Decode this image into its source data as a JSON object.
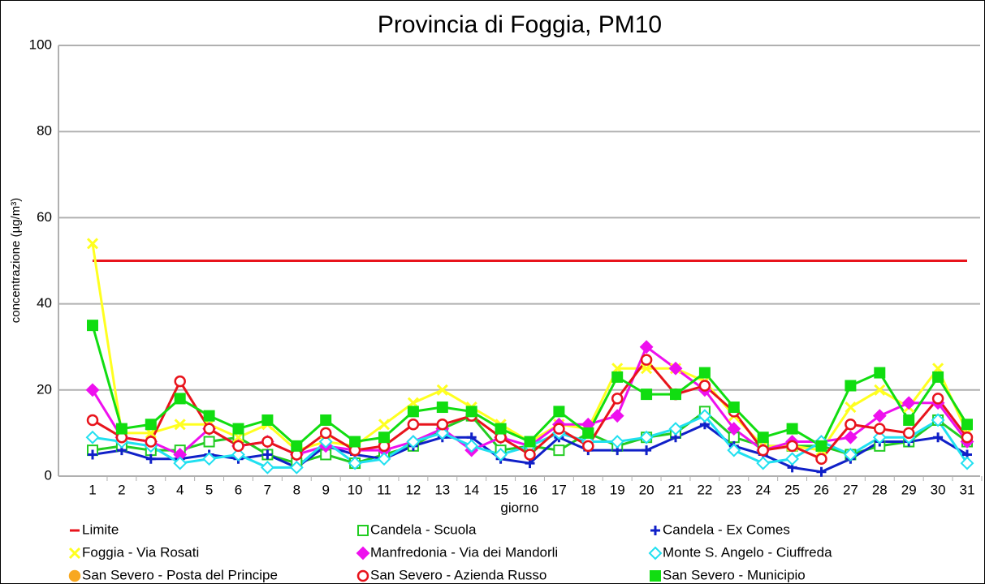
{
  "chart_data": {
    "type": "line",
    "title": "Provincia di Foggia, PM10",
    "y_label": "concentrazione (µg/m³)",
    "x_label": "giorno",
    "categories": [
      "1",
      "2",
      "3",
      "4",
      "5",
      "6",
      "7",
      "8",
      "9",
      "10",
      "11",
      "12",
      "13",
      "14",
      "15",
      "16",
      "17",
      "18",
      "19",
      "20",
      "21",
      "22",
      "23",
      "24",
      "25",
      "26",
      "27",
      "28",
      "29",
      "30",
      "31"
    ],
    "ylim": [
      0,
      100
    ],
    "yticks": [
      0,
      20,
      40,
      60,
      80,
      100
    ],
    "grid": true,
    "series": [
      {
        "name": "Limite",
        "color": "#e8141c",
        "marker": "none",
        "values": [
          50,
          50,
          50,
          50,
          50,
          50,
          50,
          50,
          50,
          50,
          50,
          50,
          50,
          50,
          50,
          50,
          50,
          50,
          50,
          50,
          50,
          50,
          50,
          50,
          50,
          50,
          50,
          50,
          50,
          50,
          50
        ]
      },
      {
        "name": "Candela - Scuola",
        "color": "#22cc22",
        "marker": "square-open",
        "values": [
          6,
          7,
          6,
          6,
          8,
          9,
          5,
          3,
          5,
          3,
          5,
          7,
          11,
          14,
          6,
          7,
          6,
          10,
          7,
          9,
          10,
          15,
          9,
          7,
          7,
          7,
          5,
          7,
          8,
          13,
          8
        ]
      },
      {
        "name": "Candela - Ex Comes",
        "color": "#1020c8",
        "marker": "plus",
        "values": [
          5,
          6,
          4,
          4,
          5,
          4,
          5,
          2,
          7,
          5,
          4,
          7,
          9,
          9,
          4,
          3,
          9,
          6,
          6,
          6,
          9,
          12,
          7,
          5,
          2,
          1,
          4,
          8,
          8,
          9,
          5
        ]
      },
      {
        "name": "Foggia - Via Rosati",
        "color": "#ffff20",
        "marker": "cross",
        "values": [
          54,
          10,
          10,
          12,
          12,
          9,
          12,
          6,
          8,
          7,
          12,
          17,
          20,
          16,
          12,
          8,
          12,
          11,
          25,
          25,
          25,
          22,
          14,
          7,
          7,
          6,
          16,
          20,
          16,
          25,
          10
        ]
      },
      {
        "name": "Manfredonia - Via dei Mandorli",
        "color": "#ee10ee",
        "marker": "diamond",
        "values": [
          20,
          9,
          8,
          5,
          11,
          7,
          8,
          5,
          7,
          6,
          6,
          8,
          11,
          6,
          9,
          7,
          12,
          12,
          14,
          30,
          25,
          20,
          11,
          6,
          8,
          8,
          9,
          14,
          17,
          17,
          8
        ]
      },
      {
        "name": "Monte S. Angelo - Ciuffreda",
        "color": "#20e0f0",
        "marker": "diamond-open",
        "values": [
          9,
          8,
          7,
          3,
          4,
          5,
          2,
          2,
          8,
          3,
          4,
          8,
          10,
          7,
          5,
          7,
          10,
          8,
          8,
          9,
          11,
          14,
          6,
          3,
          4,
          8,
          5,
          9,
          9,
          13,
          3
        ]
      },
      {
        "name": "San Severo - Posta del Principe",
        "color": "#f8a820",
        "marker": "circle",
        "values": [
          null,
          null,
          null,
          null,
          null,
          null,
          null,
          null,
          null,
          null,
          null,
          null,
          null,
          null,
          null,
          null,
          null,
          null,
          null,
          null,
          null,
          null,
          null,
          null,
          null,
          null,
          null,
          null,
          null,
          null,
          null
        ]
      },
      {
        "name": "San Severo - Azienda Russo",
        "color": "#e8141c",
        "marker": "circle-open",
        "values": [
          13,
          9,
          8,
          22,
          11,
          7,
          8,
          5,
          10,
          6,
          7,
          12,
          12,
          14,
          9,
          5,
          11,
          7,
          18,
          27,
          19,
          21,
          15,
          6,
          7,
          4,
          12,
          11,
          10,
          18,
          9
        ]
      },
      {
        "name": "San Severo  - Municipio",
        "color": "#11dd11",
        "marker": "square",
        "values": [
          35,
          11,
          12,
          18,
          14,
          11,
          13,
          7,
          13,
          8,
          9,
          15,
          16,
          15,
          11,
          8,
          15,
          10,
          23,
          19,
          19,
          24,
          16,
          9,
          11,
          7,
          21,
          24,
          13,
          23,
          12
        ]
      }
    ]
  }
}
